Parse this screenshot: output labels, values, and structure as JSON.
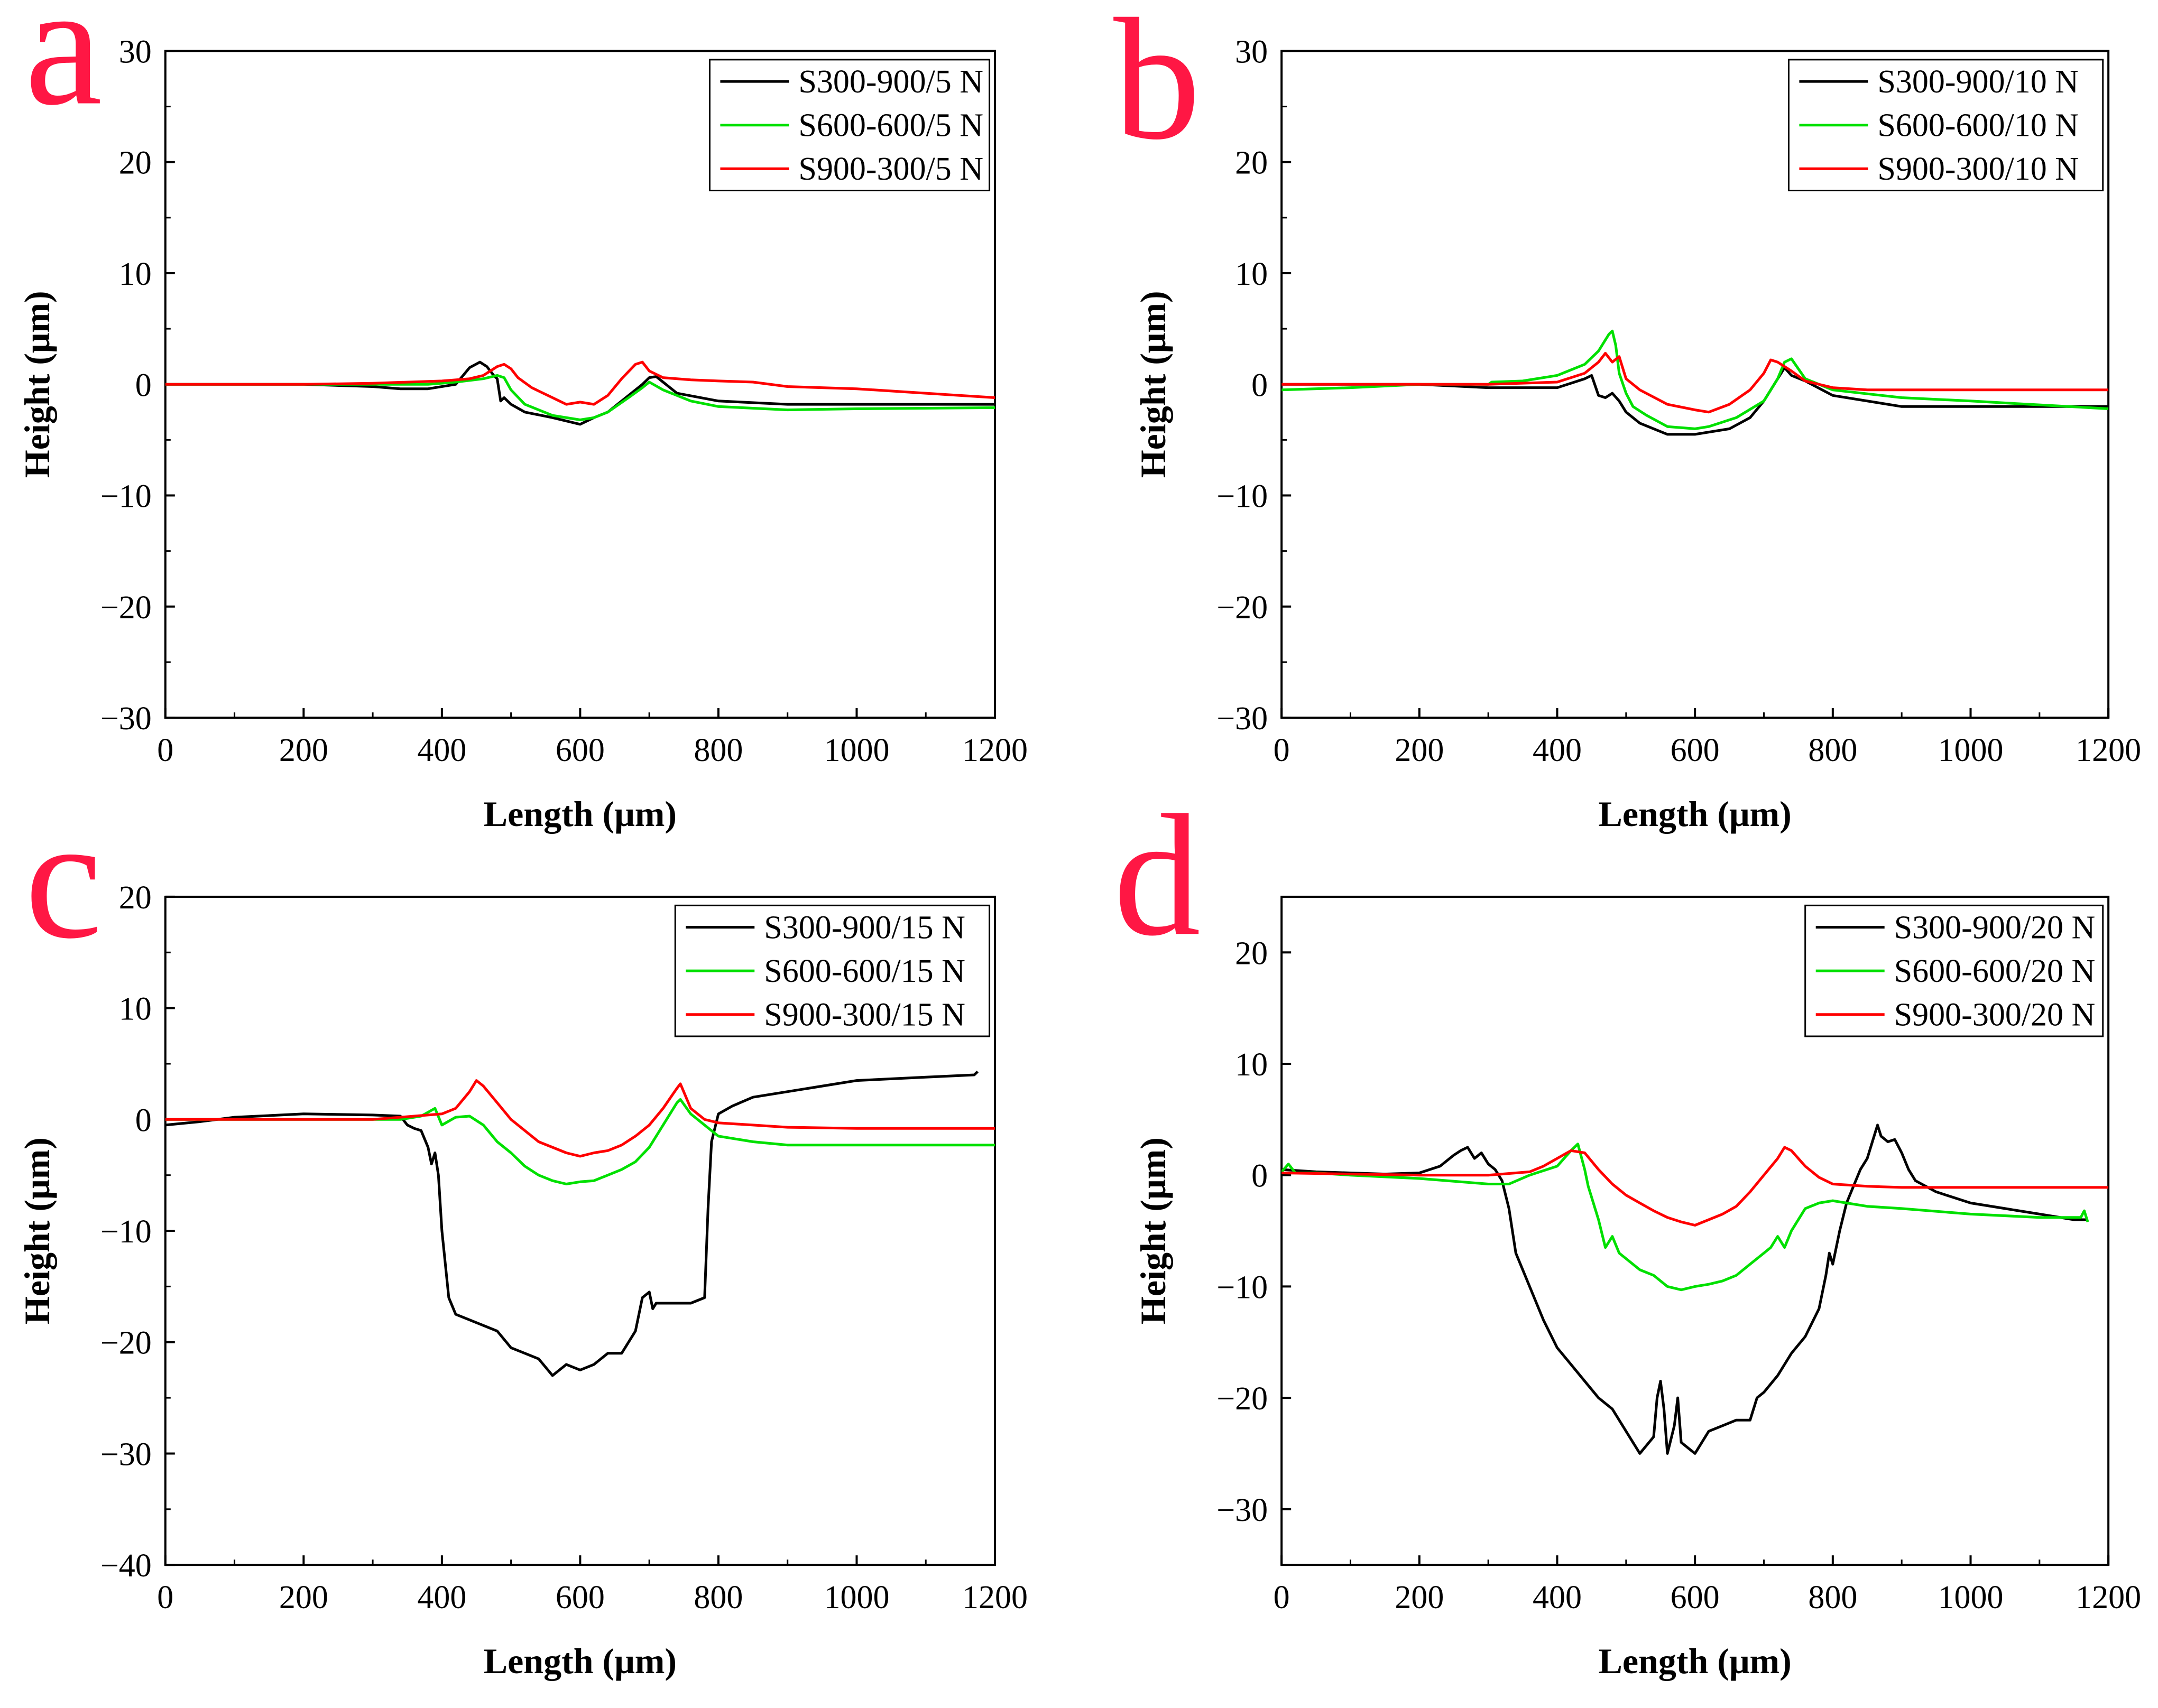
{
  "colors": {
    "black": "#000000",
    "green": "#00E000",
    "red": "#FF0000",
    "panel_letter": "#FF1744"
  },
  "chart_data": [
    {
      "panel": "a",
      "type": "line",
      "xlabel": "Length  (μm)",
      "ylabel": "Height (μm)",
      "xlim": [
        0,
        1200
      ],
      "ylim": [
        -30,
        30
      ],
      "xticks": [
        "0",
        "200",
        "400",
        "600",
        "800",
        "1000",
        "1200"
      ],
      "yticks": [
        "−30",
        "−20",
        "−10",
        "0",
        "10",
        "20",
        "30"
      ],
      "legend_position": "top-right",
      "series": [
        {
          "name": "S300-900/5 N",
          "color": "#000000",
          "x": [
            0,
            100,
            200,
            300,
            340,
            380,
            420,
            440,
            455,
            465,
            475,
            480,
            485,
            490,
            500,
            520,
            560,
            600,
            620,
            640,
            660,
            690,
            700,
            710,
            720,
            740,
            800,
            900,
            1000,
            1200
          ],
          "y": [
            0,
            0,
            0,
            -0.2,
            -0.4,
            -0.4,
            0,
            1.5,
            2.0,
            1.6,
            0.8,
            0.5,
            -1.5,
            -1.2,
            -1.8,
            -2.5,
            -3.0,
            -3.6,
            -3.0,
            -2.5,
            -1.5,
            0,
            0.6,
            0.7,
            0.2,
            -0.8,
            -1.5,
            -1.8,
            -1.8,
            -1.8
          ]
        },
        {
          "name": "S600-600/5 N",
          "color": "#00E000",
          "x": [
            0,
            100,
            200,
            300,
            380,
            420,
            460,
            480,
            490,
            500,
            520,
            560,
            600,
            620,
            640,
            670,
            690,
            700,
            720,
            760,
            800,
            900,
            1000,
            1200
          ],
          "y": [
            0,
            0,
            0,
            0,
            0,
            0.2,
            0.5,
            0.8,
            0.6,
            -0.5,
            -1.8,
            -2.8,
            -3.2,
            -3.0,
            -2.5,
            -1.2,
            -0.3,
            0.2,
            -0.5,
            -1.5,
            -2.0,
            -2.3,
            -2.2,
            -2.1
          ]
        },
        {
          "name": "S900-300/5 N",
          "color": "#FF0000",
          "x": [
            0,
            100,
            200,
            300,
            400,
            440,
            460,
            480,
            490,
            500,
            510,
            530,
            560,
            580,
            600,
            620,
            640,
            660,
            680,
            690,
            700,
            720,
            760,
            800,
            850,
            900,
            1000,
            1100,
            1200
          ],
          "y": [
            0,
            0,
            0,
            0.1,
            0.3,
            0.5,
            0.8,
            1.6,
            1.8,
            1.4,
            0.6,
            -0.3,
            -1.2,
            -1.8,
            -1.6,
            -1.8,
            -1.0,
            0.5,
            1.8,
            2.0,
            1.2,
            0.6,
            0.4,
            0.3,
            0.2,
            -0.2,
            -0.4,
            -0.8,
            -1.2
          ]
        }
      ]
    },
    {
      "panel": "b",
      "type": "line",
      "xlabel": "Length  (μm)",
      "ylabel": "Height (μm)",
      "xlim": [
        0,
        1200
      ],
      "ylim": [
        -30,
        30
      ],
      "xticks": [
        "0",
        "200",
        "400",
        "600",
        "800",
        "1000",
        "1200"
      ],
      "yticks": [
        "−30",
        "−20",
        "−10",
        "0",
        "10",
        "20",
        "30"
      ],
      "legend_position": "top-right",
      "series": [
        {
          "name": "S300-900/10 N",
          "color": "#000000",
          "x": [
            0,
            100,
            200,
            300,
            400,
            440,
            450,
            460,
            470,
            480,
            490,
            500,
            520,
            560,
            600,
            650,
            680,
            700,
            720,
            730,
            740,
            760,
            800,
            900,
            1000,
            1200
          ],
          "y": [
            0,
            0,
            0,
            -0.3,
            -0.3,
            0.5,
            0.8,
            -1.0,
            -1.2,
            -0.8,
            -1.5,
            -2.5,
            -3.5,
            -4.5,
            -4.5,
            -4.0,
            -3.0,
            -1.5,
            0.5,
            1.5,
            0.8,
            0.3,
            -1.0,
            -2.0,
            -2.0,
            -2.0
          ]
        },
        {
          "name": "S600-600/10 N",
          "color": "#00E000",
          "x": [
            0,
            100,
            200,
            300,
            305,
            350,
            400,
            440,
            460,
            475,
            480,
            485,
            490,
            500,
            510,
            530,
            560,
            600,
            620,
            660,
            700,
            720,
            730,
            740,
            760,
            800,
            900,
            1000,
            1200
          ],
          "y": [
            -0.5,
            -0.3,
            0,
            0,
            0.2,
            0.3,
            0.8,
            1.8,
            3.0,
            4.5,
            4.8,
            3.5,
            1.0,
            -0.8,
            -2.0,
            -2.8,
            -3.8,
            -4.0,
            -3.8,
            -3.0,
            -1.5,
            0.5,
            2.0,
            2.3,
            0.5,
            -0.5,
            -1.2,
            -1.5,
            -2.2
          ]
        },
        {
          "name": "S900-300/10 N",
          "color": "#FF0000",
          "x": [
            0,
            100,
            200,
            300,
            400,
            440,
            460,
            470,
            480,
            490,
            500,
            520,
            560,
            600,
            620,
            650,
            680,
            700,
            710,
            720,
            740,
            760,
            800,
            850,
            900,
            1000,
            1200
          ],
          "y": [
            0,
            0,
            0,
            0,
            0.2,
            1.0,
            2.0,
            2.8,
            2.0,
            2.5,
            0.5,
            -0.5,
            -1.8,
            -2.3,
            -2.5,
            -1.8,
            -0.5,
            1.0,
            2.2,
            2.0,
            1.2,
            0.3,
            -0.3,
            -0.5,
            -0.5,
            -0.5,
            -0.5
          ]
        }
      ]
    },
    {
      "panel": "c",
      "type": "line",
      "xlabel": "Length  (μm)",
      "ylabel": "Height (μm)",
      "xlim": [
        0,
        1200
      ],
      "ylim": [
        -40,
        20
      ],
      "xticks": [
        "0",
        "200",
        "400",
        "600",
        "800",
        "1000",
        "1200"
      ],
      "yticks": [
        "−40",
        "−30",
        "−20",
        "−10",
        "0",
        "10",
        "20"
      ],
      "legend_position": "top-right",
      "series": [
        {
          "name": "S300-900/15 N",
          "color": "#000000",
          "x": [
            0,
            50,
            100,
            200,
            300,
            340,
            350,
            360,
            370,
            380,
            385,
            390,
            395,
            400,
            410,
            420,
            440,
            480,
            500,
            520,
            540,
            560,
            580,
            600,
            620,
            640,
            660,
            680,
            690,
            700,
            705,
            710,
            720,
            740,
            760,
            780,
            785,
            790,
            800,
            820,
            850,
            900,
            1000,
            1100,
            1170,
            1175
          ],
          "y": [
            -0.5,
            -0.2,
            0.2,
            0.5,
            0.4,
            0.3,
            -0.5,
            -0.8,
            -1.0,
            -2.5,
            -4.0,
            -3.0,
            -5.0,
            -10,
            -16,
            -17.5,
            -18,
            -19,
            -20.5,
            -21,
            -21.5,
            -23.0,
            -22.0,
            -22.5,
            -22.0,
            -21.0,
            -21.0,
            -19.0,
            -16.0,
            -15.5,
            -17.0,
            -16.5,
            -16.5,
            -16.5,
            -16.5,
            -16.0,
            -8,
            -2,
            0.5,
            1.2,
            2.0,
            2.5,
            3.5,
            3.8,
            4.0,
            4.3
          ]
        },
        {
          "name": "S600-600/15 N",
          "color": "#00E000",
          "x": [
            0,
            100,
            200,
            300,
            340,
            370,
            390,
            400,
            420,
            440,
            460,
            480,
            500,
            520,
            540,
            560,
            580,
            600,
            620,
            640,
            660,
            680,
            700,
            720,
            740,
            745,
            760,
            780,
            800,
            850,
            900,
            1000,
            1200
          ],
          "y": [
            0,
            0,
            0,
            0,
            0,
            0.3,
            1.0,
            -0.5,
            0.2,
            0.3,
            -0.5,
            -2.0,
            -3.0,
            -4.2,
            -5.0,
            -5.5,
            -5.8,
            -5.6,
            -5.5,
            -5.0,
            -4.5,
            -3.8,
            -2.5,
            -0.5,
            1.5,
            1.8,
            0.5,
            -0.5,
            -1.5,
            -2.0,
            -2.3,
            -2.3,
            -2.3
          ]
        },
        {
          "name": "S900-300/15 N",
          "color": "#FF0000",
          "x": [
            0,
            100,
            200,
            300,
            400,
            420,
            440,
            450,
            460,
            480,
            500,
            520,
            540,
            560,
            580,
            600,
            620,
            640,
            660,
            680,
            700,
            720,
            740,
            745,
            760,
            780,
            800,
            850,
            900,
            1000,
            1100,
            1200
          ],
          "y": [
            0,
            0,
            0,
            0,
            0.5,
            1.0,
            2.5,
            3.5,
            3.0,
            1.5,
            0,
            -1.0,
            -2.0,
            -2.5,
            -3.0,
            -3.3,
            -3.0,
            -2.8,
            -2.3,
            -1.5,
            -0.5,
            1.0,
            2.8,
            3.2,
            1.0,
            0,
            -0.3,
            -0.5,
            -0.7,
            -0.8,
            -0.8,
            -0.8
          ]
        }
      ]
    },
    {
      "panel": "d",
      "type": "line",
      "xlabel": "Length  (μm)",
      "ylabel": "Height (μm)",
      "xlim": [
        0,
        1200
      ],
      "ylim": [
        -35,
        25
      ],
      "xticks": [
        "0",
        "200",
        "400",
        "600",
        "800",
        "1000",
        "1200"
      ],
      "yticks": [
        "−30",
        "−20",
        "−10",
        "0",
        "10",
        "20"
      ],
      "legend_position": "top-right",
      "series": [
        {
          "name": "S300-900/20 N",
          "color": "#000000",
          "x": [
            0,
            50,
            100,
            150,
            200,
            230,
            250,
            260,
            270,
            280,
            290,
            300,
            310,
            320,
            330,
            340,
            360,
            380,
            400,
            420,
            440,
            460,
            480,
            500,
            520,
            540,
            545,
            550,
            555,
            560,
            570,
            575,
            580,
            590,
            600,
            620,
            640,
            660,
            680,
            690,
            700,
            720,
            740,
            760,
            780,
            790,
            795,
            800,
            810,
            820,
            830,
            840,
            850,
            860,
            865,
            870,
            880,
            890,
            900,
            910,
            920,
            950,
            1000,
            1050,
            1100,
            1150,
            1170
          ],
          "y": [
            0.5,
            0.3,
            0.2,
            0.1,
            0.2,
            0.8,
            1.8,
            2.2,
            2.5,
            1.5,
            2.0,
            1.0,
            0.5,
            -0.5,
            -3.0,
            -7.0,
            -10,
            -13,
            -15.5,
            -17,
            -18.5,
            -20,
            -21,
            -23,
            -25,
            -23.5,
            -20,
            -18.5,
            -21,
            -25,
            -22.5,
            -20,
            -24,
            -24.5,
            -25,
            -23,
            -22.5,
            -22,
            -22,
            -20,
            -19.5,
            -18,
            -16,
            -14.5,
            -12,
            -9,
            -7,
            -8,
            -5,
            -2.5,
            -1.0,
            0.5,
            1.5,
            3.5,
            4.5,
            3.5,
            3.0,
            3.2,
            2.0,
            0.5,
            -0.5,
            -1.5,
            -2.5,
            -3.0,
            -3.5,
            -4.0,
            -4.0
          ]
        },
        {
          "name": "S600-600/20 N",
          "color": "#00E000",
          "x": [
            0,
            10,
            20,
            50,
            100,
            200,
            300,
            330,
            360,
            400,
            420,
            430,
            440,
            445,
            450,
            460,
            470,
            480,
            490,
            500,
            520,
            540,
            560,
            580,
            600,
            620,
            640,
            660,
            680,
            700,
            710,
            720,
            730,
            740,
            760,
            780,
            800,
            820,
            850,
            900,
            1000,
            1100,
            1160,
            1165,
            1170
          ],
          "y": [
            0.3,
            1.0,
            0.2,
            0.2,
            0,
            -0.3,
            -0.8,
            -0.8,
            0,
            0.8,
            2.2,
            2.8,
            0.5,
            -1.0,
            -2.0,
            -4.0,
            -6.5,
            -5.5,
            -7.0,
            -7.5,
            -8.5,
            -9.0,
            -10,
            -10.3,
            -10,
            -9.8,
            -9.5,
            -9.0,
            -8.0,
            -7.0,
            -6.5,
            -5.5,
            -6.5,
            -5.0,
            -3.0,
            -2.5,
            -2.3,
            -2.5,
            -2.8,
            -3.0,
            -3.5,
            -3.8,
            -3.8,
            -3.2,
            -4.2
          ]
        },
        {
          "name": "S900-300/20 N",
          "color": "#FF0000",
          "x": [
            0,
            100,
            200,
            300,
            360,
            380,
            400,
            420,
            440,
            460,
            480,
            500,
            520,
            540,
            560,
            580,
            600,
            620,
            640,
            660,
            680,
            700,
            720,
            730,
            740,
            760,
            780,
            800,
            850,
            900,
            1000,
            1100,
            1200
          ],
          "y": [
            0.2,
            0.1,
            0,
            0,
            0.3,
            0.8,
            1.5,
            2.2,
            2.0,
            0.5,
            -0.8,
            -1.8,
            -2.5,
            -3.2,
            -3.8,
            -4.2,
            -4.5,
            -4.0,
            -3.5,
            -2.8,
            -1.5,
            0,
            1.5,
            2.5,
            2.2,
            0.8,
            -0.2,
            -0.8,
            -1.0,
            -1.1,
            -1.1,
            -1.1,
            -1.1
          ]
        }
      ]
    }
  ]
}
